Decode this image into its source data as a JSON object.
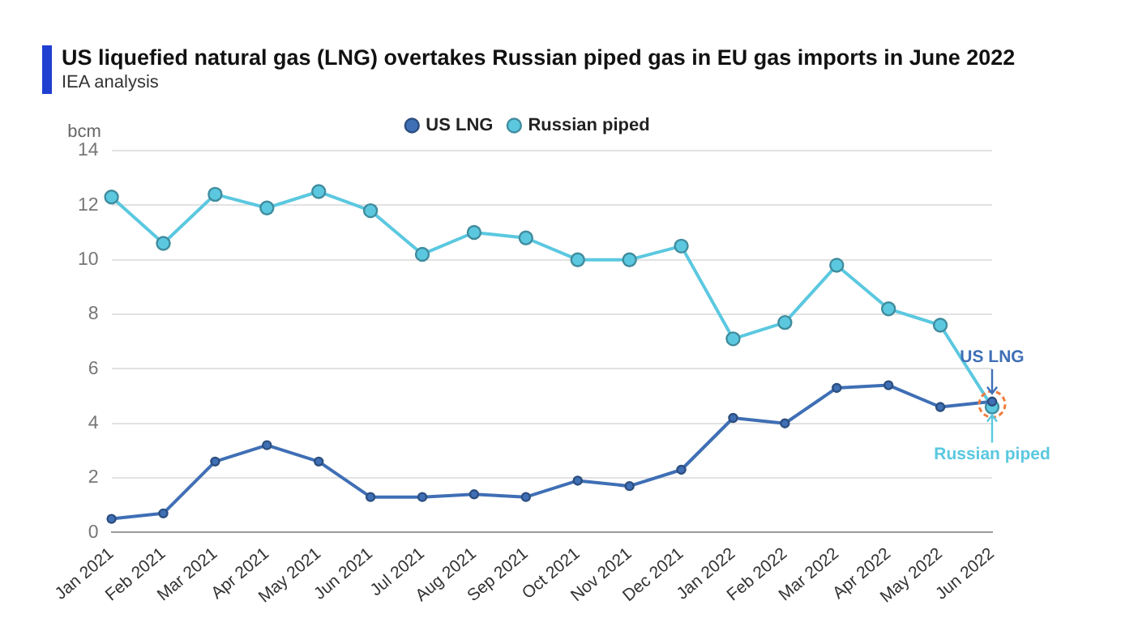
{
  "chart_data": {
    "type": "line",
    "title": "US liquefied natural gas (LNG) overtakes Russian piped gas in EU gas imports in June 2022",
    "subtitle": "IEA analysis",
    "ylabel": "bcm",
    "categories": [
      "Jan 2021",
      "Feb 2021",
      "Mar 2021",
      "Apr 2021",
      "May 2021",
      "Jun 2021",
      "Jul 2021",
      "Aug 2021",
      "Sep 2021",
      "Oct 2021",
      "Nov 2021",
      "Dec 2021",
      "Jan 2022",
      "Feb 2022",
      "Mar 2022",
      "Apr 2022",
      "May 2022",
      "Jun 2022"
    ],
    "series": [
      {
        "name": "Russian piped",
        "color": "#5bc8e0",
        "values": [
          12.3,
          10.6,
          12.4,
          11.9,
          12.5,
          11.8,
          10.2,
          11.0,
          10.8,
          10.0,
          10.0,
          10.5,
          7.1,
          7.7,
          9.8,
          8.2,
          7.6,
          4.6
        ]
      },
      {
        "name": "US LNG",
        "color": "#3f6fb5",
        "values": [
          0.5,
          0.7,
          2.6,
          3.2,
          2.6,
          1.3,
          1.3,
          1.4,
          1.3,
          1.9,
          1.7,
          2.3,
          4.2,
          4.0,
          5.3,
          5.4,
          4.6,
          4.8
        ]
      }
    ],
    "annotations": [
      {
        "text": "US LNG",
        "x": "Jun 2022",
        "y": 4.8
      },
      {
        "text": "Russian piped",
        "x": "Jun 2022",
        "y": 4.6
      }
    ],
    "ylim": [
      0,
      14
    ],
    "yticks": [
      0,
      2,
      4,
      6,
      8,
      10,
      12,
      14
    ],
    "grid": "y",
    "legend": "top",
    "marker": "circle",
    "line_style": "solid"
  }
}
